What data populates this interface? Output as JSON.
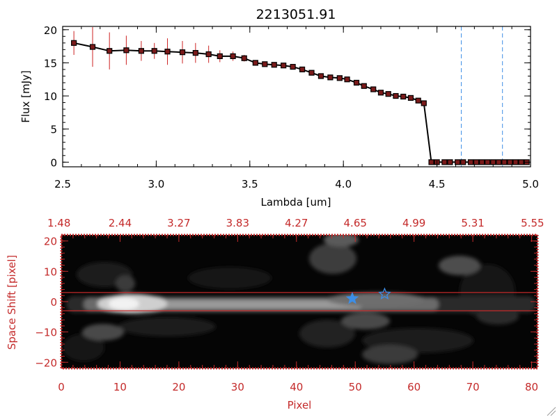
{
  "chart_data": [
    {
      "type": "line",
      "title": "2213051.91",
      "xlabel": "Lambda [um]",
      "ylabel": "Flux [mJy]",
      "xlim": [
        2.5,
        5.0
      ],
      "ylim": [
        -0.7,
        20.5
      ],
      "x_ticks": [
        2.5,
        3.0,
        3.5,
        4.0,
        4.5,
        5.0
      ],
      "x_tick_labels": [
        "2.5",
        "3.0",
        "3.5",
        "4.0",
        "4.5",
        "5.0"
      ],
      "y_ticks": [
        0,
        5,
        10,
        15,
        20
      ],
      "y_tick_labels": [
        "0",
        "5",
        "10",
        "15",
        "20"
      ],
      "series": [
        {
          "x": [
            2.56,
            2.66,
            2.75,
            2.84,
            2.92,
            2.99,
            3.06,
            3.14,
            3.21,
            3.28,
            3.34,
            3.41,
            3.47,
            3.53,
            3.58,
            3.63,
            3.68,
            3.73,
            3.78,
            3.83,
            3.88,
            3.93,
            3.98,
            4.02,
            4.07,
            4.11,
            4.16,
            4.2,
            4.24,
            4.28,
            4.32,
            4.36,
            4.4,
            4.43,
            4.47,
            4.5,
            4.54,
            4.57,
            4.61,
            4.64,
            4.68,
            4.71,
            4.74,
            4.77,
            4.8,
            4.83,
            4.86,
            4.89,
            4.92,
            4.95,
            4.98
          ],
          "y": [
            18.0,
            17.4,
            16.8,
            16.9,
            16.8,
            16.8,
            16.7,
            16.6,
            16.5,
            16.3,
            16.0,
            16.0,
            15.7,
            15.0,
            14.8,
            14.7,
            14.6,
            14.4,
            14.0,
            13.5,
            13.0,
            12.8,
            12.7,
            12.5,
            12.0,
            11.5,
            11.0,
            10.5,
            10.3,
            10.0,
            9.9,
            9.7,
            9.3,
            8.9,
            0,
            0,
            0,
            0,
            0,
            0,
            0,
            0,
            0,
            0,
            0,
            0,
            0,
            0,
            0,
            0,
            0
          ],
          "yerr": [
            1.8,
            3.0,
            2.8,
            2.2,
            1.5,
            1.2,
            2.0,
            1.7,
            1.5,
            1.3,
            0.9,
            0.7,
            0.5,
            0.4,
            0.3,
            0.3,
            0.3,
            0.3,
            0.3,
            0.3,
            0.3,
            0.3,
            0.3,
            0.3,
            0.3,
            0.3,
            0.3,
            0.3,
            0.3,
            0.3,
            0.3,
            0.3,
            0.3,
            0.3,
            0.2,
            0.2,
            0.2,
            0.2,
            0.2,
            0.2,
            0.2,
            0.2,
            0.2,
            0.2,
            0.2,
            0.2,
            0.2,
            0.2,
            0.2,
            0.2,
            0.2
          ],
          "line_color": "#000000",
          "marker_color": "#000000",
          "marker_fill": "#7a1a1a",
          "errorbar_color": "#cc2222"
        }
      ],
      "vertical_lines": [
        4.63,
        4.85
      ],
      "vertical_line_color": "#3d8ee6"
    },
    {
      "type": "heatmap",
      "xlabel": "Pixel",
      "ylabel": "Space Shift [pixel]",
      "xlim": [
        0,
        81
      ],
      "ylim": [
        -22,
        22
      ],
      "x_ticks": [
        0,
        10,
        20,
        30,
        40,
        50,
        60,
        70,
        80
      ],
      "x_tick_labels": [
        "0",
        "10",
        "20",
        "30",
        "40",
        "50",
        "60",
        "70",
        "80"
      ],
      "y_ticks": [
        -20,
        -10,
        0,
        10,
        20
      ],
      "y_tick_labels": [
        "−20",
        "−10",
        "0",
        "10",
        "20"
      ],
      "top_x_ticks": [
        0,
        10,
        20,
        30,
        40,
        50,
        60,
        70,
        80
      ],
      "top_x_tick_labels": [
        "1.48",
        "2.44",
        "3.27",
        "3.83",
        "4.27",
        "4.65",
        "4.99",
        "5.31",
        "5.55"
      ],
      "horizontal_lines": [
        3,
        -3
      ],
      "line_color": "#c42a2a",
      "star_markers": [
        {
          "x": 49.5,
          "y": 1.0,
          "filled": true
        },
        {
          "x": 55.0,
          "y": 2.5,
          "filled": false
        }
      ],
      "star_color": "#3d8ee6",
      "axis_color": "#c42a2a"
    }
  ]
}
